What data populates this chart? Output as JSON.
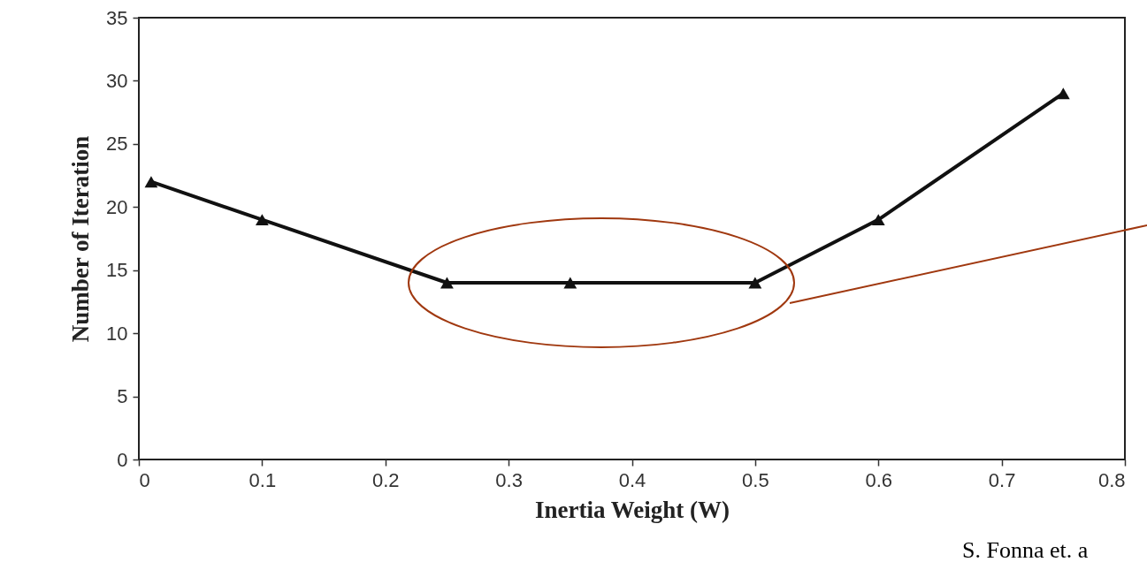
{
  "chart_data": {
    "type": "line",
    "xlabel": "Inertia Weight (W)",
    "ylabel": "Number of Iteration",
    "x": [
      0.01,
      0.1,
      0.25,
      0.35,
      0.5,
      0.6,
      0.75
    ],
    "series": [
      {
        "color": "#111111",
        "values": [
          22,
          19,
          14,
          14,
          14,
          19,
          29
        ]
      }
    ],
    "xlim": [
      0,
      0.8
    ],
    "xticks": [
      0,
      0.1,
      0.2,
      0.3,
      0.4,
      0.5,
      0.6,
      0.7,
      0.8
    ],
    "ylim": [
      0,
      35
    ],
    "yticks": [
      0,
      5,
      10,
      15,
      20,
      25,
      30,
      35
    ],
    "grid": false,
    "marker": "triangle",
    "line_style": "solid",
    "annotations": [
      "S. Fonna et. a"
    ]
  }
}
